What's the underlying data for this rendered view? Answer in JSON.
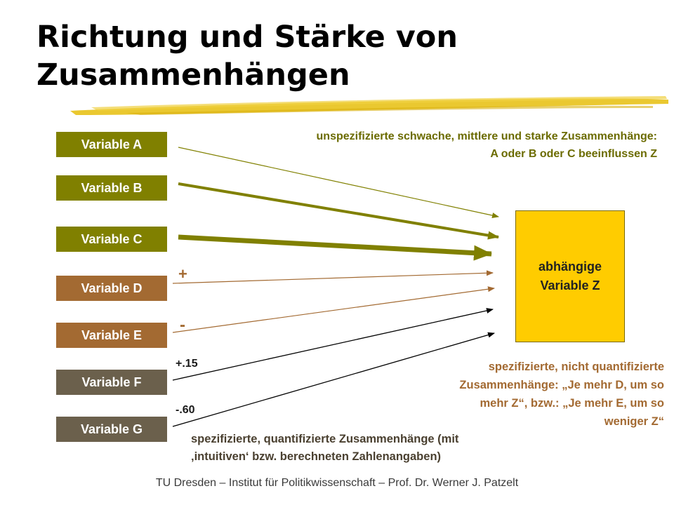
{
  "title": "Richtung und Stärke von Zusammenhängen",
  "variables": [
    {
      "label": "Variable A",
      "group": "olive"
    },
    {
      "label": "Variable B",
      "group": "olive"
    },
    {
      "label": "Variable C",
      "group": "olive"
    },
    {
      "label": "Variable D",
      "group": "brown"
    },
    {
      "label": "Variable E",
      "group": "brown"
    },
    {
      "label": "Variable F",
      "group": "grey"
    },
    {
      "label": "Variable G",
      "group": "grey"
    }
  ],
  "dependent": {
    "line1": "abhängige",
    "line2": "Variable Z"
  },
  "notes": {
    "top_line1": "unspezifizierte schwache, mittlere und starke Zusammenhänge:",
    "top_line2": "A oder B oder C beeinflussen Z",
    "right_line1": "spezifizierte, nicht quantifizierte",
    "right_line2": "Zusammenhänge: „Je mehr D, um so",
    "right_line3": "mehr Z“, bzw.: „Je mehr E, um so",
    "right_line4": "weniger Z“",
    "bottom_line1": "spezifizierte, quantifizierte Zusammenhänge (mit",
    "bottom_line2": "‚intuitiven‘ bzw. berechneten  Zahlenangaben)"
  },
  "signs": {
    "d": "+",
    "e": "-",
    "f": "+.15",
    "g": "-.60"
  },
  "relations": [
    {
      "from": "Variable A",
      "strength": "weak"
    },
    {
      "from": "Variable B",
      "strength": "medium"
    },
    {
      "from": "Variable C",
      "strength": "strong"
    },
    {
      "from": "Variable D",
      "sign": "+"
    },
    {
      "from": "Variable E",
      "sign": "-"
    },
    {
      "from": "Variable F",
      "coefficient": 0.15
    },
    {
      "from": "Variable G",
      "coefficient": -0.6
    }
  ],
  "colors": {
    "olive": "#808000",
    "brown": "#a36a32",
    "grey": "#6b604c",
    "target": "#ffcc00",
    "brush": "#e8c21a"
  },
  "footer": "TU Dresden – Institut für Politikwissenschaft – Prof. Dr. Werner J. Patzelt"
}
